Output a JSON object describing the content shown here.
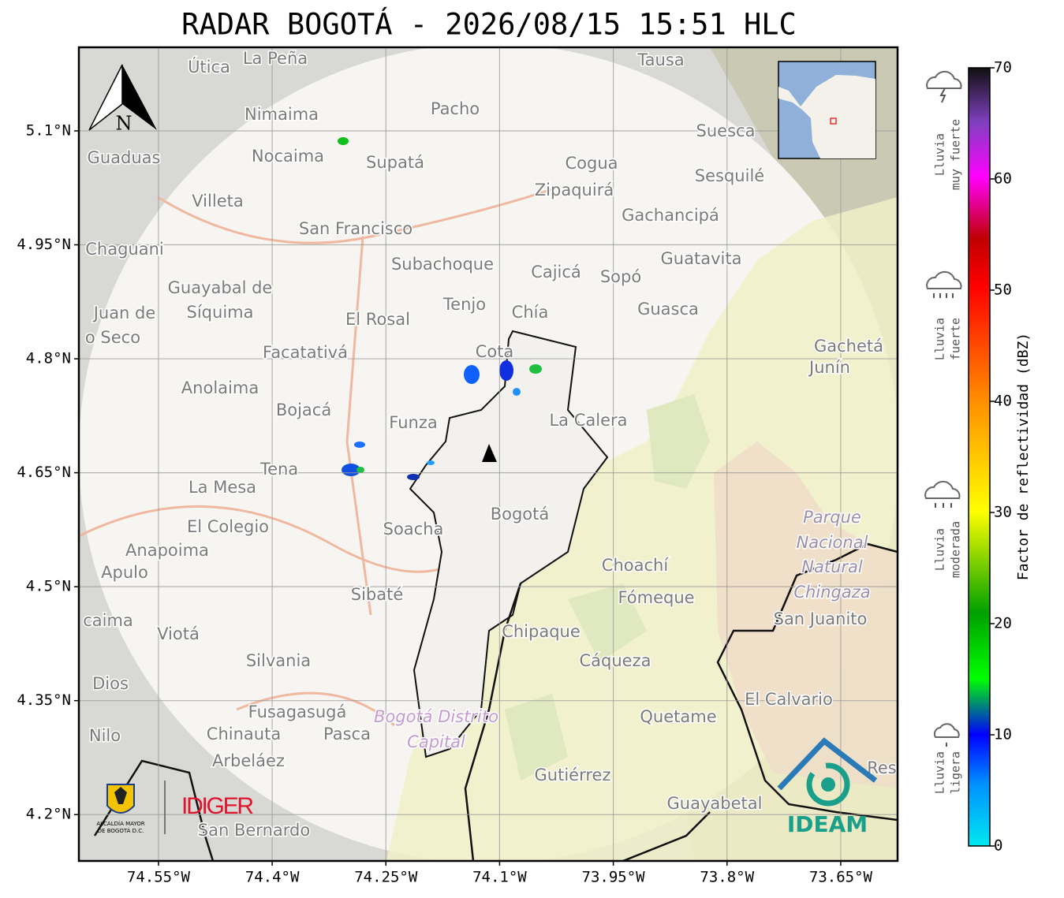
{
  "title": "RADAR BOGOTÁ - 2026/08/15 15:51 HLC",
  "map": {
    "xlim": [
      -74.655,
      -73.575
    ],
    "ylim": [
      4.139,
      5.21
    ],
    "xticks": [
      {
        "value": -74.55,
        "label": "74.55°W"
      },
      {
        "value": -74.4,
        "label": "74.4°W"
      },
      {
        "value": -74.25,
        "label": "74.25°W"
      },
      {
        "value": -74.1,
        "label": "74.1°W"
      },
      {
        "value": -73.95,
        "label": "73.95°W"
      },
      {
        "value": -73.8,
        "label": "73.8°W"
      },
      {
        "value": -73.65,
        "label": "73.65°W"
      }
    ],
    "yticks": [
      {
        "value": 5.1,
        "label": "5.1°N"
      },
      {
        "value": 4.95,
        "label": "4.95°N"
      },
      {
        "value": 4.8,
        "label": "4.8°N"
      },
      {
        "value": 4.65,
        "label": "4.65°N"
      },
      {
        "value": 4.5,
        "label": "4.5°N"
      },
      {
        "value": 4.35,
        "label": "4.35°N"
      },
      {
        "value": 4.2,
        "label": "4.2°N"
      }
    ],
    "grid": true,
    "north": "N",
    "places": [
      "La Peña",
      "Útica",
      "Tausa",
      "Pacho",
      "Nimaima",
      "Guaduas",
      "Nocaima",
      "Supatá",
      "Cogua",
      "Suesca",
      "Sesquilé",
      "Zipaquirá",
      "Villeta",
      "Gachancipá",
      "San Francisco",
      "Chaguani",
      "Guatavita",
      "Subachoque",
      "Cajicá",
      "Sopó",
      "Guayabal de",
      "Síquima",
      "Juan de",
      "Tenjo",
      "Guasca",
      "Chía",
      "El Rosal",
      "o Seco",
      "Gachetá",
      "Junín",
      "Facatativá",
      "Cota",
      "Anolaima",
      "Bojacá",
      "Funza",
      "La Calera",
      "Tena",
      "La Mesa",
      "Bogotá",
      "Parque",
      "Nacional",
      "Natural",
      "Chingaza",
      "El Colegio",
      "Soacha",
      "Anapoima",
      "Apulo",
      "Choachí",
      "Sibaté",
      "Fómeque",
      "San Juanito",
      "caima",
      "Viotá",
      "Chipaque",
      "Silvania",
      "Cáqueza",
      "Dios",
      "El Calvario",
      "Quetame",
      "Fusagasugá",
      "Bogotá Distrito",
      "Capital",
      "Nilo",
      "Chinauta",
      "Pasca",
      "Arbeláez",
      "Gutiérrez",
      "Guayabetal",
      "San Bernardo",
      "Res"
    ]
  },
  "colorbar": {
    "label": "Factor de reflectividad (dBZ)",
    "lim": [
      0,
      70
    ],
    "ticks": [
      0,
      10,
      20,
      30,
      40,
      50,
      60,
      70
    ]
  },
  "legend": [
    {
      "lines": [
        "Lluvia",
        "muy fuerte"
      ]
    },
    {
      "lines": [
        "Lluvia",
        "fuerte"
      ]
    },
    {
      "lines": [
        "Lluvia",
        "moderada"
      ]
    },
    {
      "lines": [
        "Lluvia",
        "ligera"
      ]
    }
  ],
  "logos": {
    "alcaldia": [
      "ALCALDÍA MAYOR",
      "DE BOGOTÁ D.C."
    ],
    "idiger": "IDIGER",
    "ideam": "IDEAM"
  }
}
